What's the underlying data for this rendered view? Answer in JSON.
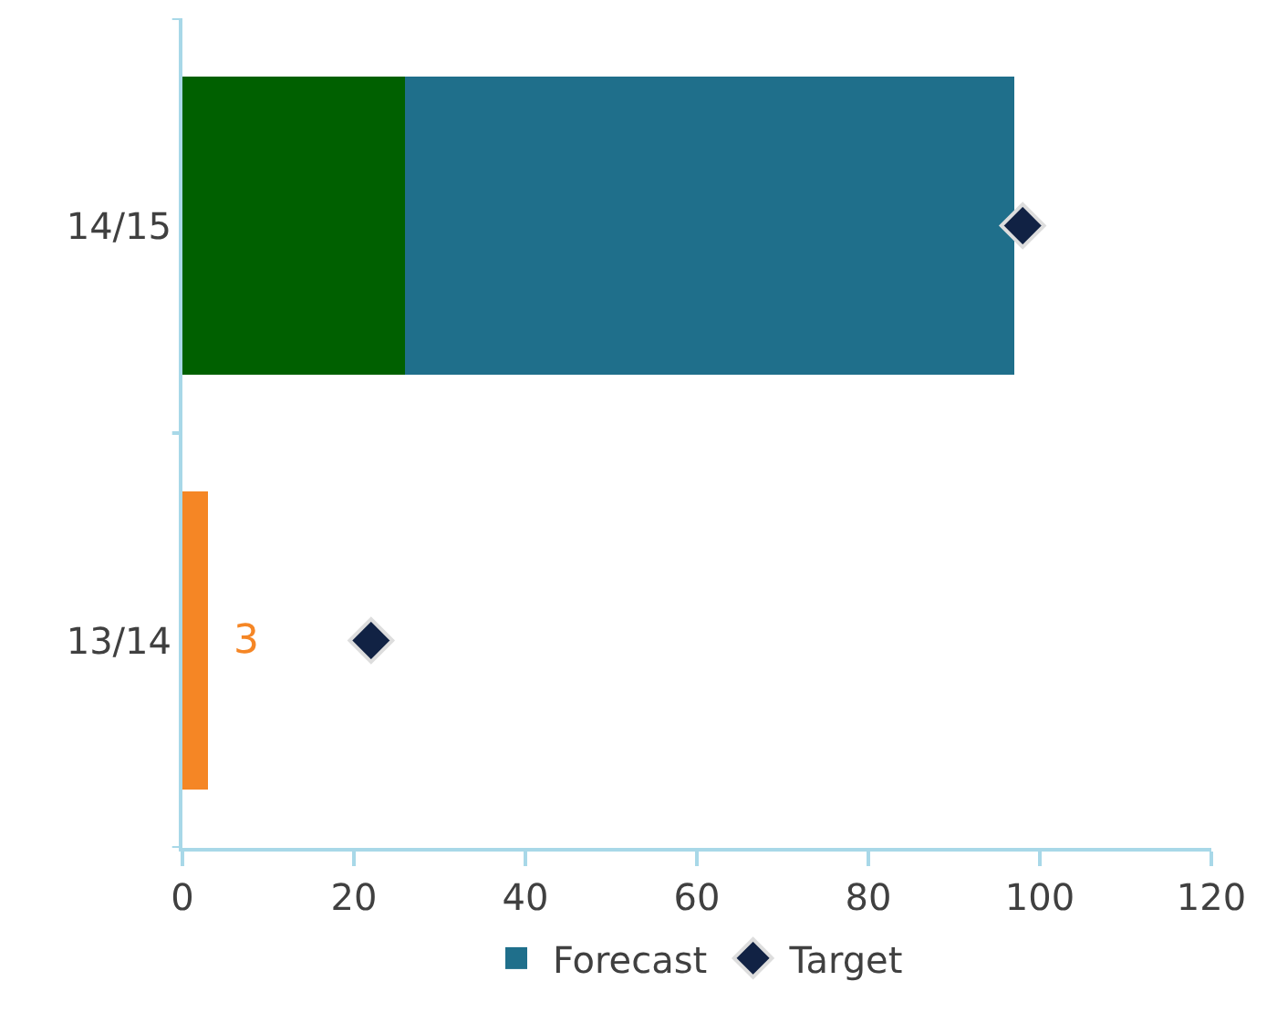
{
  "chart_data": {
    "type": "bar",
    "orientation": "horizontal",
    "stacked": true,
    "categories": [
      "14/15",
      "13/14"
    ],
    "series": [
      {
        "colors": [
          "#006000",
          "#f58625"
        ],
        "values": [
          26,
          3
        ],
        "value_labels": [
          null,
          "3"
        ]
      },
      {
        "name": "Forecast",
        "color": "#1f6f8b",
        "values": [
          71,
          null
        ]
      },
      {
        "name": "Target",
        "type": "scatter",
        "color": "#112244",
        "values": [
          98,
          22
        ],
        "marker": "diamond"
      }
    ],
    "xlim": [
      0,
      120
    ],
    "xticks": [
      0,
      20,
      40,
      60,
      80,
      100,
      120
    ],
    "legend": "bottom"
  }
}
